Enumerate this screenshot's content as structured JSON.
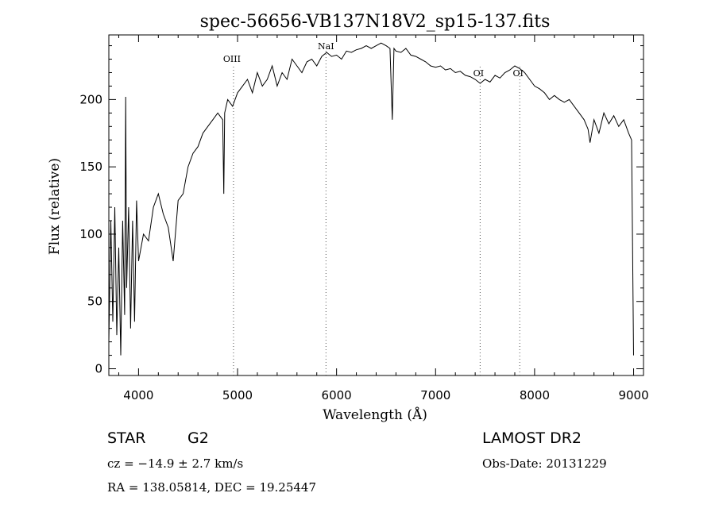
{
  "chart_data": {
    "type": "line",
    "title": "spec-56656-VB137N18V2_sp15-137.fits",
    "xlabel": "Wavelength (Å)",
    "ylabel": "Flux (relative)",
    "xlim": [
      3700,
      9100
    ],
    "ylim": [
      -5,
      248
    ],
    "xticks": [
      4000,
      5000,
      6000,
      7000,
      8000,
      9000
    ],
    "yticks": [
      0,
      50,
      100,
      150,
      200
    ],
    "line_color": "#000000",
    "grid": false,
    "series": [
      {
        "x": [
          3700,
          3720,
          3740,
          3760,
          3780,
          3800,
          3820,
          3840,
          3860,
          3870,
          3880,
          3900,
          3920,
          3940,
          3960,
          3980,
          4000,
          4050,
          4100,
          4150,
          4200,
          4250,
          4300,
          4350,
          4400,
          4450,
          4500,
          4550,
          4600,
          4650,
          4700,
          4750,
          4800,
          4850,
          4861,
          4870,
          4900,
          4950,
          5000,
          5050,
          5100,
          5150,
          5200,
          5250,
          5300,
          5350,
          5400,
          5450,
          5500,
          5550,
          5600,
          5650,
          5700,
          5750,
          5800,
          5850,
          5900,
          5950,
          6000,
          6050,
          6100,
          6150,
          6200,
          6250,
          6300,
          6350,
          6400,
          6450,
          6500,
          6540,
          6563,
          6580,
          6600,
          6650,
          6700,
          6750,
          6800,
          6850,
          6900,
          6950,
          7000,
          7050,
          7100,
          7150,
          7200,
          7250,
          7300,
          7350,
          7400,
          7450,
          7500,
          7550,
          7600,
          7650,
          7700,
          7750,
          7800,
          7850,
          7900,
          7950,
          8000,
          8050,
          8100,
          8150,
          8200,
          8250,
          8300,
          8350,
          8400,
          8450,
          8500,
          8540,
          8560,
          8600,
          8650,
          8700,
          8750,
          8800,
          8850,
          8900,
          8950,
          8980,
          9000
        ],
        "y": [
          20,
          110,
          35,
          120,
          25,
          90,
          10,
          110,
          40,
          202,
          60,
          120,
          30,
          110,
          35,
          125,
          80,
          100,
          95,
          120,
          130,
          115,
          105,
          80,
          125,
          130,
          150,
          160,
          165,
          175,
          180,
          185,
          190,
          185,
          130,
          190,
          200,
          195,
          205,
          210,
          215,
          205,
          220,
          210,
          215,
          225,
          210,
          220,
          215,
          230,
          225,
          220,
          228,
          230,
          225,
          232,
          235,
          232,
          233,
          230,
          236,
          235,
          237,
          238,
          240,
          238,
          240,
          242,
          240,
          238,
          185,
          238,
          236,
          235,
          238,
          233,
          232,
          230,
          228,
          225,
          224,
          225,
          222,
          223,
          220,
          221,
          218,
          217,
          215,
          212,
          215,
          213,
          218,
          216,
          220,
          222,
          225,
          223,
          220,
          215,
          210,
          208,
          205,
          200,
          203,
          200,
          198,
          200,
          195,
          190,
          185,
          178,
          168,
          185,
          175,
          190,
          182,
          188,
          180,
          185,
          175,
          170,
          10
        ]
      }
    ],
    "annotations": [
      {
        "label": "OIII",
        "x": 4959
      },
      {
        "label": "NaI",
        "x": 5893
      },
      {
        "label": "OI",
        "x": 7450
      },
      {
        "label": "OI",
        "x": 7850
      }
    ]
  },
  "info": {
    "object_type": "STAR",
    "subclass": "G2",
    "survey": "LAMOST DR2",
    "velocity": "cz = −14.9 ± 2.7 km/s",
    "obs_date": "Obs-Date: 20131229",
    "coords": "RA = 138.05814, DEC =  19.25447"
  }
}
